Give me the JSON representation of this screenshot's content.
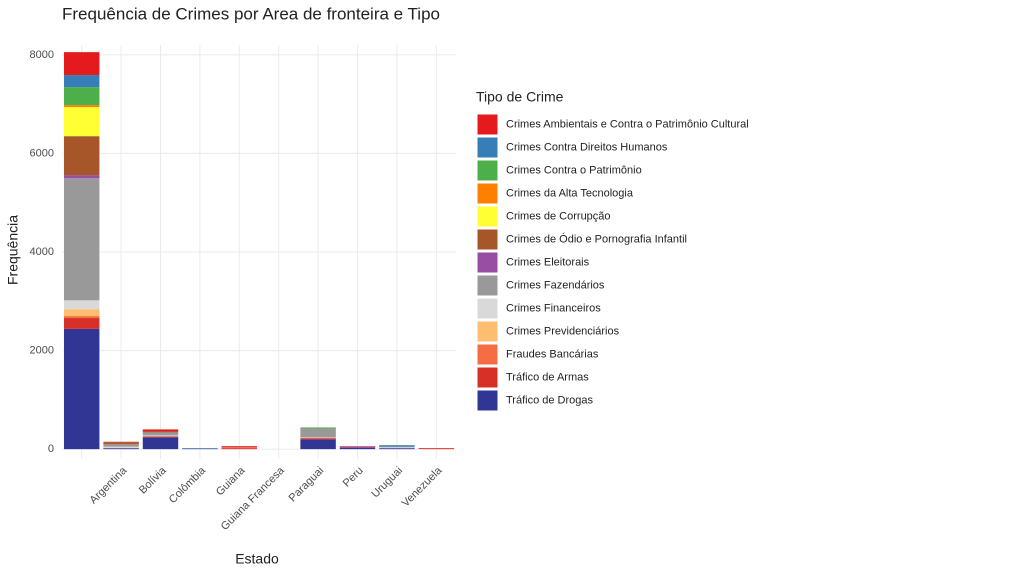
{
  "chart_data": {
    "type": "stacked_bar",
    "title": "Frequência de Crimes por Area de fronteira e Tipo",
    "x_label": "Estado",
    "y_label": "Frequência",
    "legend_title": "Tipo de Crime",
    "categories": [
      null,
      "Argentina",
      "Bolívia",
      "Colômbia",
      "Guiana",
      "Guiana Francesa",
      "Paraguai",
      "Peru",
      "Uruguai",
      "Venezuela"
    ],
    "ylim": [
      -200,
      8200
    ],
    "yticks": [
      0,
      2000,
      4000,
      6000,
      8000
    ],
    "grid": true,
    "legend_position": "right",
    "series": [
      {
        "name": "Crimes Ambientais e Contra o Patrimônio Cultural",
        "color": "#E41A1C",
        "values": [
          465,
          10,
          40,
          0,
          20,
          0,
          0,
          10,
          0,
          0
        ]
      },
      {
        "name": "Crimes Contra Direitos Humanos",
        "color": "#377EB8",
        "values": [
          245,
          0,
          0,
          10,
          0,
          0,
          0,
          0,
          30,
          0
        ]
      },
      {
        "name": "Crimes Contra o Patrimônio",
        "color": "#4DAF4A",
        "values": [
          365,
          0,
          0,
          0,
          0,
          0,
          20,
          0,
          0,
          0
        ]
      },
      {
        "name": "Crimes da Alta Tecnologia",
        "color": "#FF7F00",
        "values": [
          40,
          0,
          0,
          0,
          0,
          0,
          0,
          0,
          0,
          0
        ]
      },
      {
        "name": "Crimes de Corrupção",
        "color": "#FFFF33",
        "values": [
          590,
          0,
          0,
          0,
          0,
          0,
          0,
          0,
          0,
          0
        ]
      },
      {
        "name": "Crimes de Ódio e Pornografia Infantil",
        "color": "#A65628",
        "values": [
          790,
          40,
          20,
          0,
          0,
          0,
          0,
          0,
          0,
          0
        ]
      },
      {
        "name": "Crimes Eleitorais",
        "color": "#984EA3",
        "values": [
          60,
          0,
          0,
          0,
          0,
          0,
          0,
          20,
          0,
          0
        ]
      },
      {
        "name": "Crimes Fazendários",
        "color": "#999999",
        "values": [
          2480,
          50,
          60,
          0,
          0,
          0,
          180,
          0,
          10,
          0
        ]
      },
      {
        "name": "Crimes Financeiros",
        "color": "#D9D9D9",
        "values": [
          180,
          30,
          20,
          0,
          0,
          0,
          0,
          0,
          20,
          0
        ]
      },
      {
        "name": "Crimes Previdenciários",
        "color": "#FDBF6F",
        "values": [
          140,
          0,
          0,
          0,
          0,
          0,
          10,
          0,
          0,
          0
        ]
      },
      {
        "name": "Fraudes Bancárias",
        "color": "#F46D43",
        "values": [
          40,
          0,
          0,
          0,
          20,
          0,
          10,
          0,
          0,
          0
        ]
      },
      {
        "name": "Tráfico de Armas",
        "color": "#D73027",
        "values": [
          220,
          0,
          20,
          0,
          20,
          0,
          20,
          0,
          0,
          20
        ]
      },
      {
        "name": "Tráfico de Drogas",
        "color": "#313695",
        "values": [
          2440,
          20,
          240,
          10,
          0,
          0,
          200,
          30,
          20,
          0
        ]
      }
    ]
  }
}
